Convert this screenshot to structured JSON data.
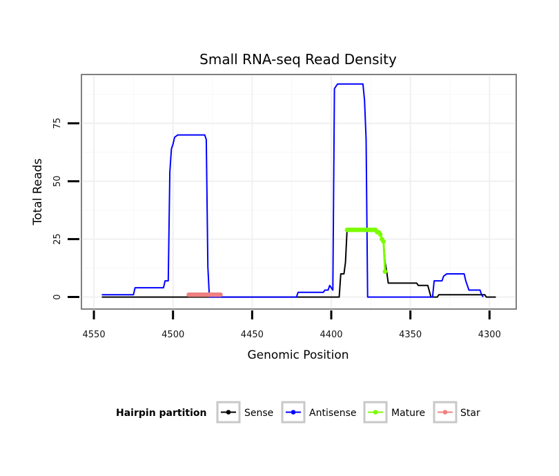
{
  "chart_data": {
    "type": "line",
    "title": "Small RNA-seq Read Density",
    "xlabel": "Genomic Position",
    "ylabel": "Total Reads",
    "xlim": [
      4557,
      4284
    ],
    "ylim": [
      -4.6,
      95.5
    ],
    "x_reversed": true,
    "grid": true,
    "x_ticks": [
      4550,
      4500,
      4450,
      4400,
      4350,
      4300
    ],
    "x_tick_labels": [
      "4550",
      "4500",
      "4450",
      "4400",
      "4350",
      "4300"
    ],
    "y_ticks": [
      0,
      25,
      50,
      75
    ],
    "y_tick_labels": [
      "0",
      "25",
      "50",
      "75"
    ],
    "legend_title": "Hairpin partition",
    "legend_position": "bottom",
    "series": [
      {
        "name": "Sense",
        "color": "#000000",
        "marker": "line",
        "x": [
          4545,
          4400,
          4395,
          4394,
          4393,
          4392,
          4391,
          4390,
          4389,
          4388,
          4387,
          4376,
          4375,
          4374,
          4373,
          4372,
          4371,
          4370,
          4369,
          4368,
          4367,
          4366,
          4365,
          4364,
          4363,
          4346,
          4345,
          4340,
          4339,
          4337,
          4336,
          4333,
          4332,
          4303,
          4302,
          4296
        ],
        "y": [
          0,
          0,
          0,
          10,
          10,
          10,
          15,
          29,
          29,
          29,
          29,
          29,
          29,
          29,
          29,
          29,
          28,
          28,
          27,
          25,
          24,
          15,
          11,
          6,
          6,
          6,
          5,
          5,
          5,
          0,
          0,
          0,
          1,
          1,
          0,
          0
        ]
      },
      {
        "name": "Antisense",
        "color": "#0000ff",
        "marker": "line",
        "x": [
          4545,
          4525,
          4524,
          4506,
          4505,
          4503,
          4502,
          4501,
          4500,
          4499,
          4497,
          4480,
          4479,
          4478,
          4477,
          4476,
          4422,
          4421,
          4405,
          4404,
          4402,
          4401,
          4399,
          4398,
          4397,
          4396,
          4395,
          4380,
          4379,
          4378,
          4377,
          4337,
          4336,
          4335,
          4333,
          4330,
          4329,
          4327,
          4316,
          4315,
          4313,
          4306,
          4305,
          4304
        ],
        "y": [
          1,
          1,
          4,
          4,
          7,
          7,
          54,
          64,
          66,
          69,
          70,
          70,
          68,
          13,
          0,
          0,
          0,
          2,
          2,
          3,
          3,
          5,
          3,
          90,
          91,
          92,
          92,
          92,
          85,
          68,
          0,
          0,
          0,
          7,
          7,
          7,
          9,
          10,
          10,
          7,
          3,
          3,
          1,
          0
        ]
      },
      {
        "name": "Mature",
        "color": "#7cfc00",
        "marker": "point",
        "x": [
          4390,
          4389,
          4388,
          4387,
          4386,
          4385,
          4384,
          4383,
          4382,
          4381,
          4380,
          4379,
          4378,
          4377,
          4376,
          4375,
          4374,
          4373,
          4372,
          4371,
          4370,
          4369,
          4368,
          4367,
          4366
        ],
        "y": [
          29,
          29,
          29,
          29,
          29,
          29,
          29,
          29,
          29,
          29,
          29,
          29,
          29,
          29,
          29,
          29,
          29,
          29,
          29,
          28,
          28,
          27,
          25,
          24,
          11
        ]
      },
      {
        "name": "Star",
        "color": "#f08080",
        "marker": "point",
        "x": [
          4490,
          4489,
          4488,
          4487,
          4486,
          4485,
          4484,
          4483,
          4482,
          4481,
          4480,
          4479,
          4478,
          4477,
          4476,
          4475,
          4474,
          4473,
          4472,
          4471,
          4470
        ],
        "y": [
          1,
          1,
          1,
          1,
          1,
          1,
          1,
          1,
          1,
          1,
          1,
          1,
          1,
          1,
          1,
          1,
          1,
          1,
          1,
          1,
          1
        ]
      }
    ]
  }
}
